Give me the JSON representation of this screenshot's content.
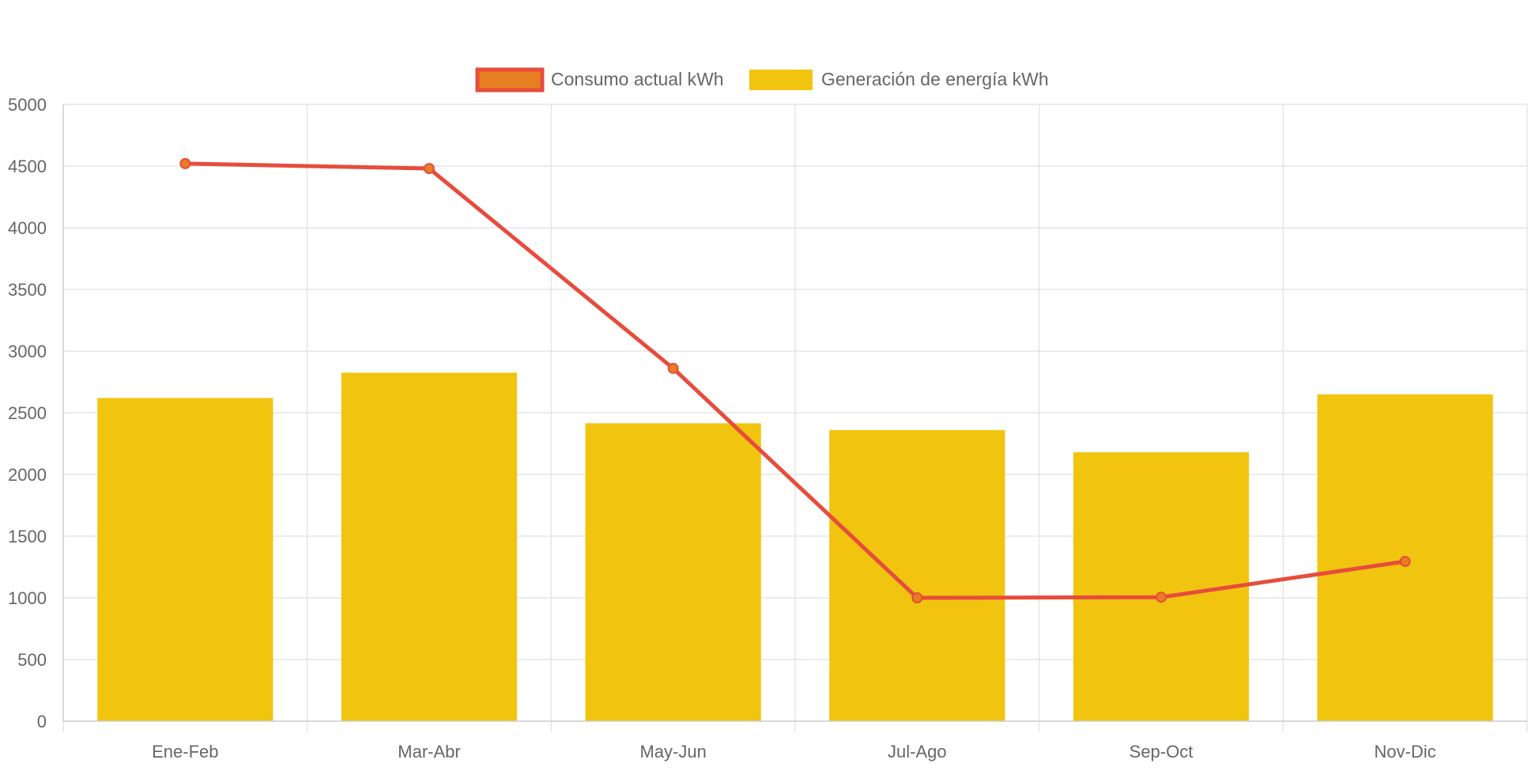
{
  "chart_data": {
    "type": "bar",
    "categories": [
      "Ene-Feb",
      "Mar-Abr",
      "May-Jun",
      "Jul-Ago",
      "Sep-Oct",
      "Nov-Dic"
    ],
    "series": [
      {
        "name": "Consumo actual kWh",
        "type": "line",
        "values": [
          4520,
          4480,
          2860,
          1000,
          1005,
          1295
        ],
        "color": "#e74c3c",
        "point_color": "#e67e22"
      },
      {
        "name": "Generación de energía kWh",
        "type": "bar",
        "values": [
          2620,
          2825,
          2415,
          2360,
          2180,
          2650
        ],
        "color": "#f1c40f"
      }
    ],
    "ylim": [
      0,
      5000
    ],
    "yticks": [
      0,
      500,
      1000,
      1500,
      2000,
      2500,
      3000,
      3500,
      4000,
      4500,
      5000
    ],
    "grid": true,
    "legend_position": "top-center",
    "title": "",
    "xlabel": "",
    "ylabel": ""
  }
}
